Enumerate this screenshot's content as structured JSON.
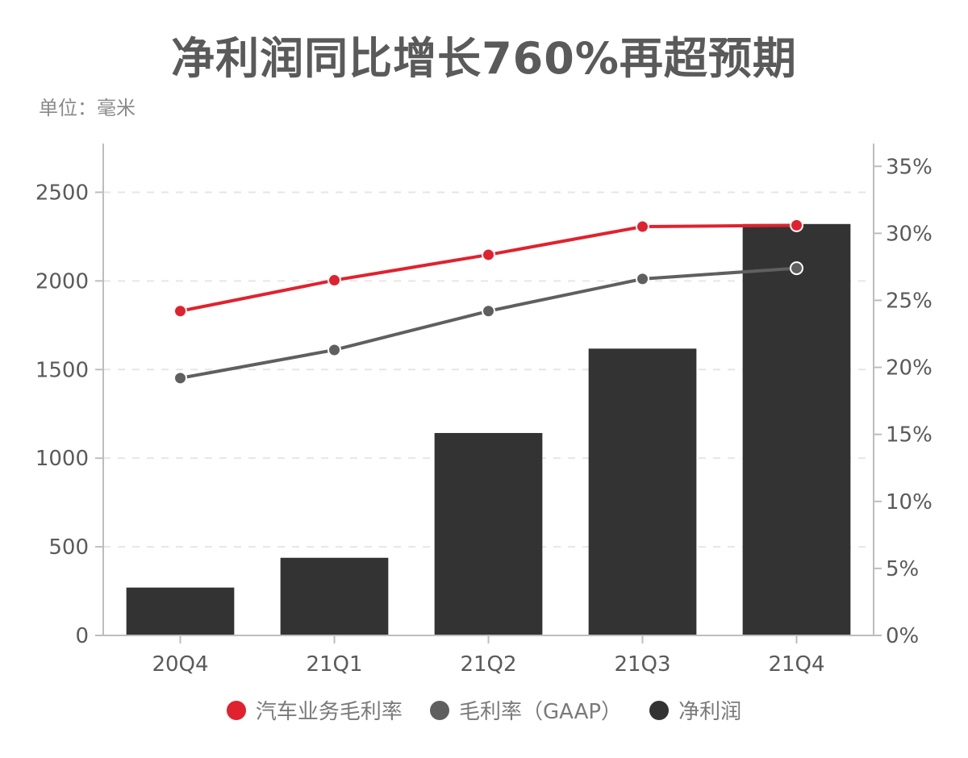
{
  "title": "净利润同比增长760%再超预期",
  "unit": "单位：毫米",
  "colors": {
    "auto_margin": "#e0222e",
    "gaap_margin": "#5f5f5f",
    "net_profit": "#333333",
    "axis": "#bdbdbd",
    "grid": "#e6e6e6",
    "tick_text": "#5a5a5a"
  },
  "chart_data": {
    "type": "bar",
    "categories": [
      "20Q4",
      "21Q1",
      "21Q2",
      "21Q3",
      "21Q4"
    ],
    "series": [
      {
        "name": "净利润",
        "type": "bar",
        "axis": "left",
        "values": [
          270,
          438,
          1142,
          1618,
          2321
        ]
      },
      {
        "name": "汽车业务毛利率",
        "type": "line",
        "axis": "right",
        "values": [
          24.2,
          26.5,
          28.4,
          30.5,
          30.6
        ]
      },
      {
        "name": "毛利率（GAAP）",
        "type": "line",
        "axis": "right",
        "values": [
          19.2,
          21.3,
          24.2,
          26.6,
          27.4
        ]
      }
    ],
    "y_left": {
      "ylim": [
        0,
        2775
      ],
      "ticks": [
        "0",
        "500",
        "1000",
        "1500",
        "2000",
        "2500"
      ]
    },
    "y_right": {
      "ylim": [
        0,
        36.7
      ],
      "ticks": [
        "0%",
        "5%",
        "10%",
        "15%",
        "20%",
        "25%",
        "30%",
        "35%"
      ]
    },
    "grid": "horizontal-dashed",
    "legend_position": "bottom"
  },
  "legend": [
    {
      "label": "汽车业务毛利率",
      "color": "#e0222e"
    },
    {
      "label": "毛利率（GAAP）",
      "color": "#5f5f5f"
    },
    {
      "label": "净利润",
      "color": "#333333"
    }
  ]
}
